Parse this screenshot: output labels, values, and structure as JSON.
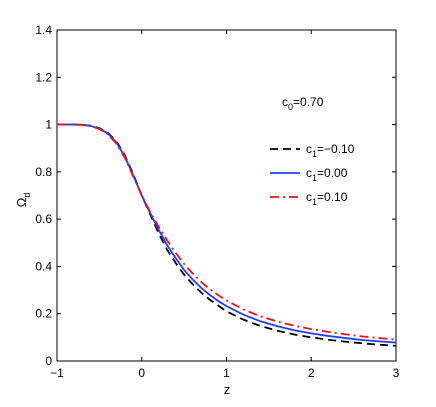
{
  "chart_data": {
    "type": "line",
    "xlabel": "z",
    "ylabel": "Ω",
    "ylabel_sub": "d",
    "xlim": [
      -1,
      3
    ],
    "ylim": [
      0,
      1.4
    ],
    "xticks": [
      -1,
      0,
      1,
      2,
      3
    ],
    "yticks": [
      0,
      0.2,
      0.4,
      0.6,
      0.8,
      1,
      1.2,
      1.4
    ],
    "grid": false,
    "annotation": {
      "main": "c",
      "sub": "0",
      "rest": "=0.70"
    },
    "legend_placement": "right",
    "x": [
      -1,
      -0.9,
      -0.8,
      -0.7,
      -0.6,
      -0.5,
      -0.4,
      -0.3,
      -0.2,
      -0.1,
      0,
      0.1,
      0.2,
      0.3,
      0.4,
      0.5,
      0.6,
      0.7,
      0.8,
      0.9,
      1,
      1.2,
      1.4,
      1.6,
      1.8,
      2,
      2.2,
      2.4,
      2.6,
      2.8,
      3
    ],
    "series": [
      {
        "name": {
          "main": "c",
          "sub": "1",
          "rest": "=−0.10"
        },
        "color": "#000000",
        "dash": "8,5",
        "values": [
          1.0,
          1.0,
          1.0,
          0.999,
          0.995,
          0.985,
          0.965,
          0.93,
          0.87,
          0.79,
          0.7,
          0.62,
          0.54,
          0.47,
          0.415,
          0.365,
          0.325,
          0.29,
          0.26,
          0.235,
          0.21,
          0.175,
          0.148,
          0.128,
          0.112,
          0.1,
          0.09,
          0.082,
          0.075,
          0.069,
          0.064
        ]
      },
      {
        "name": {
          "main": "c",
          "sub": "1",
          "rest": "=0.00"
        },
        "color": "#1f3fff",
        "dash": "",
        "values": [
          1.0,
          1.0,
          1.0,
          0.999,
          0.994,
          0.983,
          0.962,
          0.925,
          0.865,
          0.785,
          0.7,
          0.625,
          0.555,
          0.49,
          0.435,
          0.385,
          0.345,
          0.31,
          0.28,
          0.254,
          0.232,
          0.196,
          0.168,
          0.147,
          0.13,
          0.117,
          0.106,
          0.097,
          0.089,
          0.083,
          0.078
        ]
      },
      {
        "name": {
          "main": "c",
          "sub": "1",
          "rest": "=0.10"
        },
        "color": "#e8141a",
        "dash": "9,4,2,4",
        "values": [
          1.0,
          1.0,
          1.0,
          0.999,
          0.993,
          0.981,
          0.959,
          0.92,
          0.86,
          0.78,
          0.7,
          0.63,
          0.568,
          0.51,
          0.458,
          0.41,
          0.37,
          0.335,
          0.305,
          0.279,
          0.256,
          0.218,
          0.189,
          0.167,
          0.149,
          0.135,
          0.123,
          0.113,
          0.104,
          0.097,
          0.091
        ]
      }
    ]
  }
}
